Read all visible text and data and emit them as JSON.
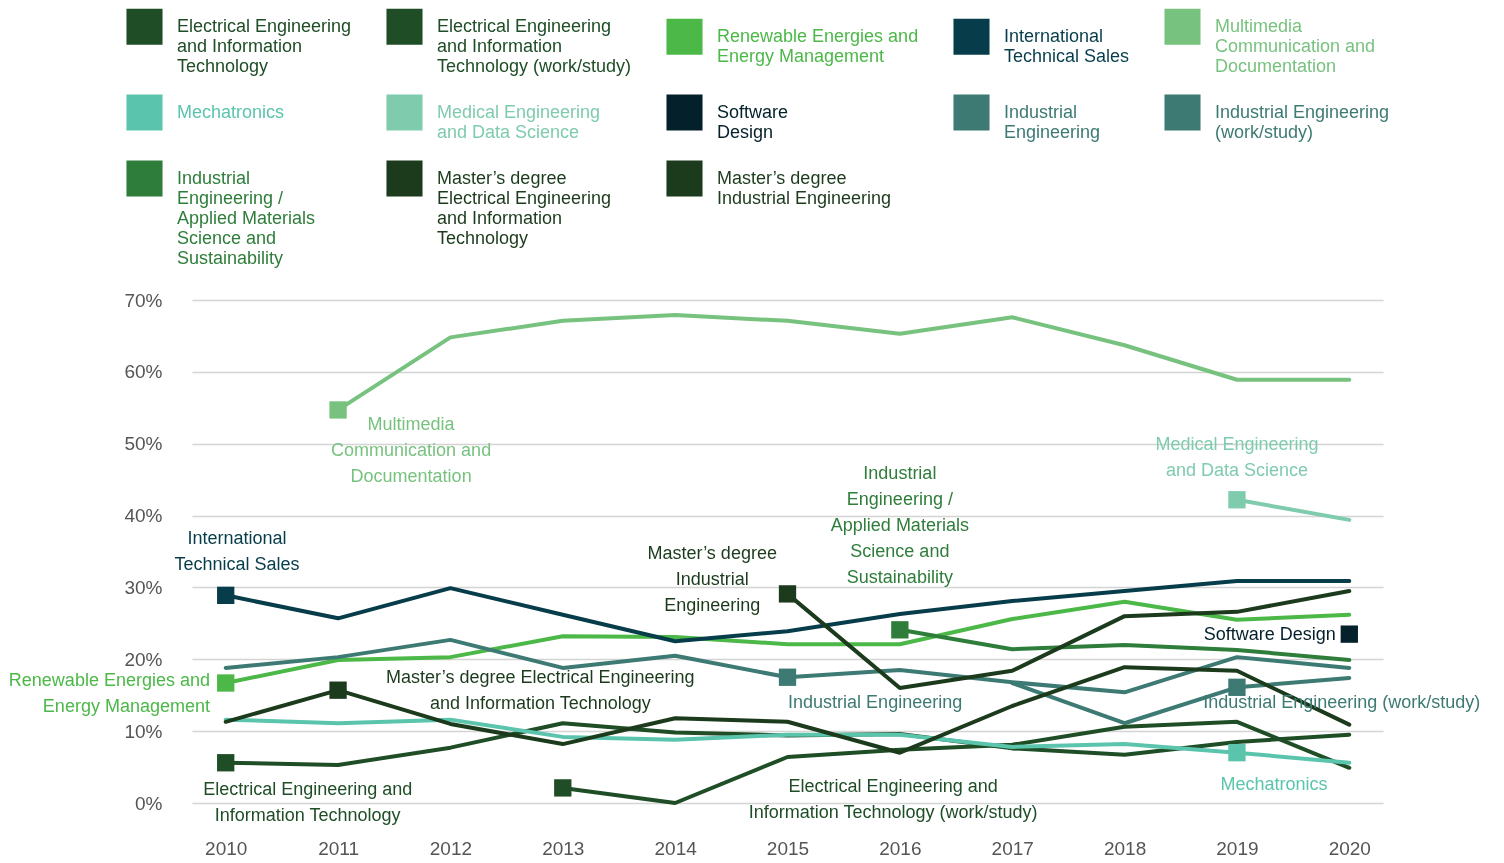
{
  "chart_data": {
    "type": "line",
    "x": [
      2010,
      2011,
      2012,
      2013,
      2014,
      2015,
      2016,
      2017,
      2018,
      2019,
      2020
    ],
    "xlim": [
      2009.7,
      2020.3
    ],
    "xticks": [
      2010,
      2011,
      2012,
      2013,
      2014,
      2015,
      2016,
      2017,
      2018,
      2019,
      2020
    ],
    "ylim": [
      0,
      70
    ],
    "yticks": [
      {
        "value": 0,
        "label": "0%"
      },
      {
        "value": 10,
        "label": "10%"
      },
      {
        "value": 20,
        "label": "20%"
      },
      {
        "value": 30,
        "label": "30%"
      },
      {
        "value": 40,
        "label": "40%"
      },
      {
        "value": 50,
        "label": "50%"
      },
      {
        "value": 60,
        "label": "60%"
      },
      {
        "value": 70,
        "label": "70%"
      }
    ],
    "grid": "y",
    "legend": "top",
    "line_style": "solid",
    "series": [
      {
        "name": "Electrical Engineering and Information Technology",
        "color": "#1e4d26",
        "values": [
          5.6,
          5.3,
          7.7,
          11.1,
          9.8,
          9.4,
          9.6,
          7.6,
          6.7,
          8.5,
          9.5
        ]
      },
      {
        "name": "Electrical Engineering and Information Technology (work/study)",
        "color": "#1e4d26",
        "values": [
          null,
          null,
          null,
          2.1,
          0,
          6.4,
          7.4,
          8.1,
          10.6,
          11.3,
          4.9
        ]
      },
      {
        "name": "Renewable Energies and Energy Management",
        "color": "#4cb848",
        "values": [
          16.7,
          19.9,
          20.3,
          23.2,
          23.1,
          22.1,
          22.1,
          25.6,
          28.0,
          25.5,
          26.2
        ]
      },
      {
        "name": "International Technical Sales",
        "color": "#073d4a",
        "values": [
          28.9,
          25.7,
          29.9,
          26.2,
          22.5,
          23.9,
          26.3,
          28.1,
          29.5,
          30.9,
          30.9
        ]
      },
      {
        "name": "Multimedia Communication and Documentation",
        "color": "#78c27f",
        "values": [
          null,
          54.7,
          64.8,
          67.1,
          67.9,
          67.1,
          65.3,
          67.6,
          63.7,
          58.9,
          58.9
        ]
      },
      {
        "name": "Mechatronics",
        "color": "#5bc4ad",
        "values": [
          11.6,
          11.1,
          11.6,
          9.2,
          8.8,
          9.5,
          9.5,
          7.8,
          8.2,
          7.0,
          5.6
        ]
      },
      {
        "name": "Medical Engineering and Data Science",
        "color": "#7fcbae",
        "values": [
          null,
          null,
          null,
          null,
          null,
          null,
          null,
          null,
          null,
          42.2,
          39.4
        ]
      },
      {
        "name": "Software Design",
        "color": "#04202a",
        "marker": "square",
        "values": [
          null,
          null,
          null,
          null,
          null,
          null,
          null,
          null,
          null,
          null,
          23.5
        ]
      },
      {
        "name": "Industrial Engineering",
        "color": "#3d7a73",
        "values": [
          18.8,
          20.3,
          22.7,
          18.8,
          20.5,
          17.5,
          18.5,
          16.8,
          15.4,
          20.3,
          18.8
        ]
      },
      {
        "name": "Industrial Engineering (work/study)",
        "color": "#3d7a73",
        "values": [
          null,
          null,
          null,
          null,
          null,
          null,
          null,
          16.7,
          11.1,
          16.1,
          17.4
        ]
      },
      {
        "name": "Industrial Engineering / Applied Materials Science and Sustainability",
        "color": "#2e7d3a",
        "values": [
          null,
          null,
          null,
          null,
          null,
          null,
          24.1,
          21.4,
          22.0,
          21.3,
          19.9
        ]
      },
      {
        "name": "Master’s degree Electrical Engineering and Information Technology",
        "color": "#1c3a1c",
        "values": [
          11.3,
          15.7,
          11.0,
          8.2,
          11.8,
          11.3,
          7.0,
          13.5,
          18.9,
          18.4,
          10.9
        ]
      },
      {
        "name": "Master’s degree Industrial Engineering",
        "color": "#1c3a1c",
        "values": [
          null,
          null,
          null,
          null,
          null,
          29.1,
          16.0,
          18.4,
          26.0,
          26.6,
          29.5
        ]
      }
    ],
    "annotations": [
      "Multimedia Communication and Documentation",
      "Medical Engineering and Data Science",
      "International Technical Sales",
      "Master’s degree Industrial Engineering",
      "Industrial Engineering / Applied Materials Science and Sustainability",
      "Software Design",
      "Renewable Energies and Energy Management",
      "Master’s degree Electrical Engineering and Information Technology",
      "Industrial Engineering",
      "Industrial Engineering (work/study)",
      "Electrical Engineering and Information Technology",
      "Electrical Engineering and Information Technology (work/study)",
      "Mechatronics"
    ]
  }
}
